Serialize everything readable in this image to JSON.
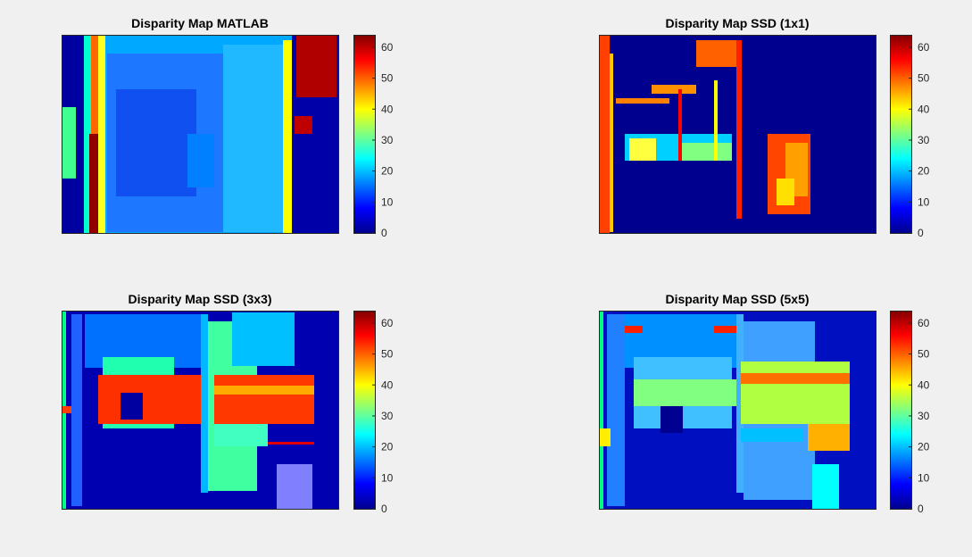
{
  "figure": {
    "background": "#f0f0f0"
  },
  "colormap": "jet",
  "chart_data": [
    {
      "type": "heatmap",
      "title": "Disparity Map MATLAB",
      "colorbar": {
        "ticks": [
          0,
          10,
          20,
          30,
          40,
          50,
          60
        ],
        "clim": [
          0,
          64
        ]
      },
      "dominant_values": [
        20,
        15,
        25
      ]
    },
    {
      "type": "heatmap",
      "title": "Disparity Map SSD (1x1)",
      "colorbar": {
        "ticks": [
          0,
          10,
          20,
          30,
          40,
          50,
          60
        ],
        "clim": [
          0,
          64
        ]
      },
      "dominant_values": [
        5,
        0,
        60
      ]
    },
    {
      "type": "heatmap",
      "title": "Disparity Map SSD (3x3)",
      "colorbar": {
        "ticks": [
          0,
          10,
          20,
          30,
          40,
          50,
          60
        ],
        "clim": [
          0,
          64
        ]
      },
      "dominant_values": [
        5,
        25,
        55
      ]
    },
    {
      "type": "heatmap",
      "title": "Disparity Map SSD (5x5)",
      "colorbar": {
        "ticks": [
          0,
          10,
          20,
          30,
          40,
          50,
          60
        ],
        "clim": [
          0,
          64
        ]
      },
      "dominant_values": [
        10,
        20,
        35,
        45
      ]
    }
  ]
}
